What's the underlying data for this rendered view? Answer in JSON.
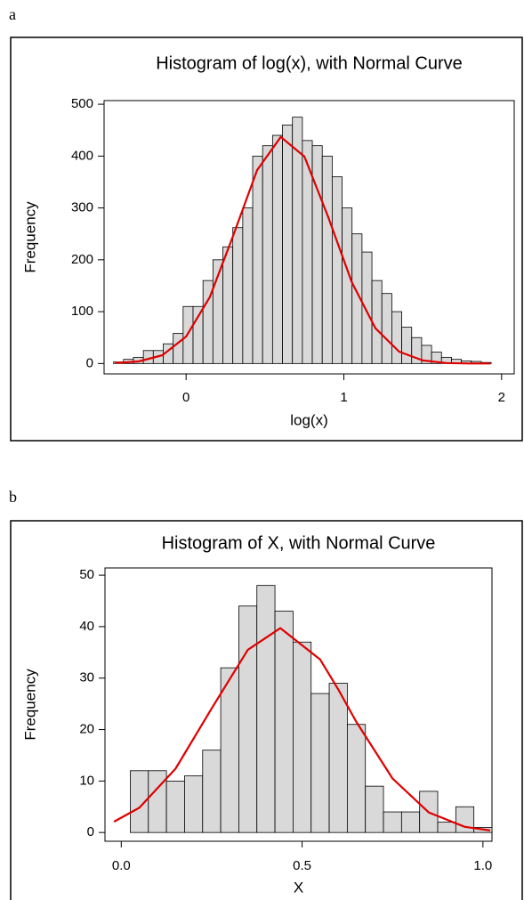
{
  "chart_data": [
    {
      "type": "histogram",
      "panel_label": "a",
      "title": "Histogram of log(x), with Normal Curve",
      "x_label": "log(x)",
      "y_label": "Frequency",
      "color": "#d9d9d9",
      "bins": [
        -0.46,
        -0.397,
        -0.334,
        -0.271,
        -0.208,
        -0.145,
        -0.082,
        -0.019,
        0.044,
        0.107,
        0.17,
        0.233,
        0.296,
        0.359,
        0.422,
        0.485,
        0.548,
        0.611,
        0.674,
        0.737,
        0.8,
        0.863,
        0.926,
        0.989,
        1.052,
        1.115,
        1.178,
        1.241,
        1.304,
        1.367,
        1.43,
        1.493,
        1.556,
        1.619,
        1.682,
        1.745,
        1.808,
        1.871,
        1.934
      ],
      "values": [
        3,
        8,
        12,
        25,
        25,
        38,
        58,
        110,
        110,
        160,
        200,
        225,
        262,
        300,
        400,
        420,
        440,
        460,
        475,
        430,
        420,
        400,
        360,
        300,
        250,
        215,
        160,
        135,
        100,
        70,
        50,
        35,
        22,
        12,
        8,
        5,
        4,
        2
      ],
      "curve": {
        "color": "#e00000",
        "x": [
          -0.45,
          -0.3,
          -0.15,
          0,
          0.15,
          0.3,
          0.45,
          0.6,
          0.75,
          0.9,
          1.05,
          1.2,
          1.35,
          1.5,
          1.65,
          1.8,
          1.93
        ],
        "values": [
          1,
          4,
          16,
          52,
          128,
          248,
          373,
          437,
          399,
          283,
          157,
          68,
          23,
          6,
          1,
          0,
          0
        ]
      },
      "xlim": [
        -0.52,
        2.08
      ],
      "ylim": [
        -20,
        507
      ],
      "xticks": [
        0,
        1,
        2
      ],
      "yticks": [
        0,
        100,
        200,
        300,
        400,
        500
      ]
    },
    {
      "type": "histogram",
      "panel_label": "b",
      "title": "Histogram of X, with Normal Curve",
      "x_label": "X",
      "y_label": "Frequency",
      "color": "#d9d9d9",
      "bins": [
        -0.025,
        0.025,
        0.075,
        0.125,
        0.175,
        0.225,
        0.275,
        0.325,
        0.375,
        0.425,
        0.475,
        0.525,
        0.575,
        0.625,
        0.675,
        0.725,
        0.775,
        0.825,
        0.875,
        0.925,
        0.975,
        1.025
      ],
      "values": [
        0,
        12,
        12,
        10,
        11,
        16,
        32,
        44,
        48,
        43,
        37,
        27,
        29,
        21,
        9,
        4,
        4,
        8,
        2,
        5,
        1
      ],
      "curve": {
        "color": "#e00000",
        "x": [
          -0.02,
          0.05,
          0.15,
          0.25,
          0.35,
          0.44,
          0.55,
          0.6,
          0.65,
          0.75,
          0.85,
          0.95,
          1.02
        ],
        "values": [
          2.1,
          4.8,
          12.4,
          24.1,
          35.5,
          39.7,
          33.6,
          27.8,
          21.5,
          10.5,
          3.9,
          1.1,
          0.4
        ]
      },
      "xlim": [
        -0.045,
        1.025
      ],
      "ylim": [
        -1.7,
        51.4
      ],
      "xticks": [
        {
          "value": 0,
          "label": "0.0"
        },
        {
          "value": 0.5,
          "label": "0.5"
        },
        {
          "value": 1,
          "label": "1.0"
        }
      ],
      "yticks": [
        0,
        10,
        20,
        30,
        40,
        50
      ]
    }
  ]
}
